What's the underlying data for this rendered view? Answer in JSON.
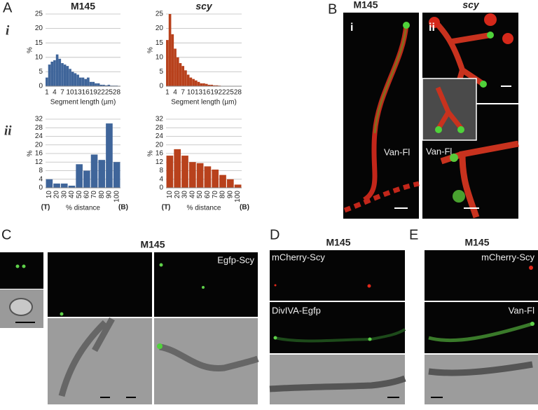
{
  "labels": {
    "panel_A": "A",
    "A_i": "i",
    "A_ii": "ii",
    "panel_B": "B",
    "B_title_1": "M145",
    "B_title_2": "scy",
    "B_i": "i",
    "B_ii": "ii",
    "B_van_1": "Van-Fl",
    "B_van_2": "Van-Fl",
    "panel_C": "C",
    "C_title": "M145",
    "C_egfp": "Egfp-Scy",
    "panel_D": "D",
    "D_title": "M145",
    "D_mcherry": "mCherry-Scy",
    "D_divIVA": "DivIVA-Egfp",
    "panel_E": "E",
    "E_title": "M145",
    "E_mcherry": "mCherry-Scy",
    "E_van": "Van-Fl"
  },
  "chart_data": [
    {
      "type": "bar",
      "title": "M145",
      "x_label": "Segment length (µm)",
      "y_label": "%",
      "color": "#3f659a",
      "grid": true,
      "categories": [
        "1",
        null,
        null,
        "4",
        null,
        null,
        "7",
        null,
        null,
        "10",
        null,
        null,
        "13",
        null,
        null,
        "16",
        null,
        null,
        "19",
        null,
        null,
        "22",
        null,
        null,
        "25",
        null,
        null,
        "28",
        null
      ],
      "values": [
        3,
        7.5,
        8.5,
        9,
        11,
        9.5,
        8,
        7.5,
        7,
        6,
        5,
        4.5,
        4,
        3,
        3,
        2.5,
        3,
        1.5,
        1.5,
        1,
        1,
        0.5,
        0.5,
        0.3,
        0.5,
        0.2,
        0.2,
        0.2,
        0.1
      ],
      "ylim": [
        0,
        25
      ],
      "yticks": [
        0,
        5,
        10,
        15,
        20,
        25
      ]
    },
    {
      "type": "bar",
      "title": "scy",
      "x_label": "Segment length (µm)",
      "y_label": "%",
      "color": "#b8411c",
      "grid": true,
      "categories": [
        "1",
        null,
        null,
        "4",
        null,
        null,
        "7",
        null,
        null,
        "10",
        null,
        null,
        "13",
        null,
        null,
        "16",
        null,
        null,
        "19",
        null,
        null,
        "22",
        null,
        null,
        "25",
        null,
        null,
        "28",
        null
      ],
      "values": [
        16,
        25,
        18,
        13,
        10,
        8,
        7,
        5.5,
        4,
        3,
        2.5,
        2,
        1.5,
        1,
        1,
        0.8,
        0.5,
        0.5,
        0.3,
        0.3,
        0.2,
        0.1,
        0.1,
        0.1,
        0.1,
        0.1,
        0.1,
        0.1,
        0.1
      ],
      "ylim": [
        0,
        25
      ],
      "yticks": [
        0,
        5,
        10,
        15,
        20,
        25
      ]
    },
    {
      "type": "bar",
      "x_label": "% distance",
      "y_label": "%",
      "color": "#3f659a",
      "grid": true,
      "annotations": [
        "(T)",
        "(B)"
      ],
      "categories": [
        "10",
        "20",
        "30",
        "40",
        "50",
        "60",
        "70",
        "80",
        "90",
        "100"
      ],
      "values": [
        4,
        2,
        2,
        1,
        11,
        8,
        15.5,
        13,
        30,
        12
      ],
      "ylim": [
        0,
        32
      ],
      "yticks": [
        0,
        4,
        8,
        12,
        16,
        20,
        24,
        28,
        32
      ]
    },
    {
      "type": "bar",
      "x_label": "% distance",
      "y_label": "%",
      "color": "#b8411c",
      "grid": true,
      "annotations": [
        "(T)",
        "(B)"
      ],
      "categories": [
        "10",
        "20",
        "30",
        "40",
        "50",
        "60",
        "70",
        "80",
        "90",
        "100"
      ],
      "values": [
        15,
        18,
        15,
        12,
        11.5,
        10,
        8.5,
        6,
        4,
        1.5
      ],
      "ylim": [
        0,
        32
      ],
      "yticks": [
        0,
        4,
        8,
        12,
        16,
        20,
        24,
        28,
        32
      ]
    }
  ]
}
